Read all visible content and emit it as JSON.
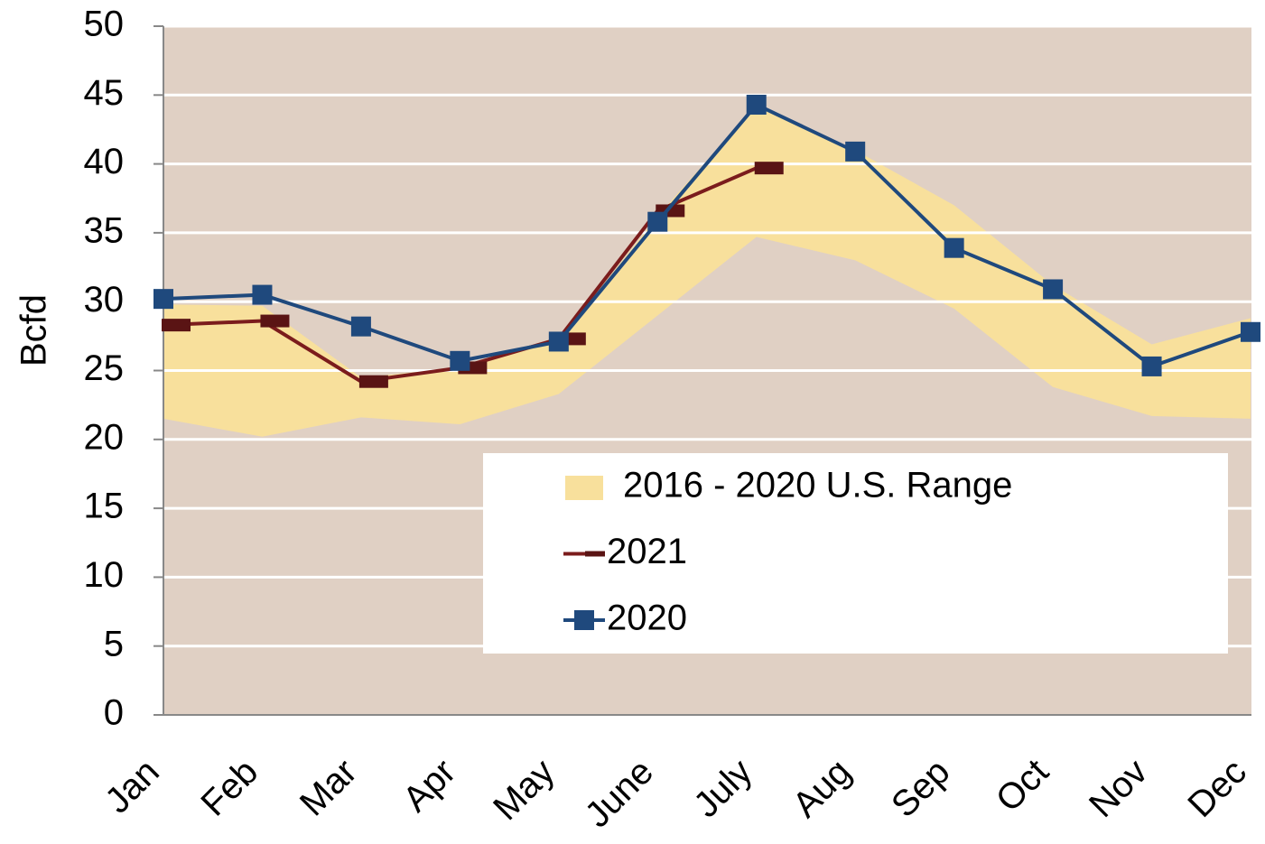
{
  "chart_data": {
    "type": "line",
    "y_label": "Bcfd",
    "categories": [
      "Jan",
      "Feb",
      "Mar",
      "Apr",
      "May",
      "June",
      "July",
      "Aug",
      "Sep",
      "Oct",
      "Nov",
      "Dec"
    ],
    "series": [
      {
        "name": "2016 - 2020 U.S. Range",
        "color": "#f8e09c",
        "low": [
          21.5,
          20.2,
          21.6,
          21.1,
          23.3,
          29,
          34.7,
          33,
          29.5,
          23.8,
          21.7,
          21.5
        ],
        "high": [
          29.8,
          29.7,
          24.5,
          25.2,
          27.2,
          36.2,
          44.3,
          41,
          37,
          31.2,
          26.9,
          28.8
        ]
      },
      {
        "name": "2021",
        "color": "#7b1c1c",
        "marker": "dash",
        "values": [
          28.3,
          28.6,
          24.2,
          25.2,
          27.3,
          36.6,
          39.7,
          null,
          null,
          null,
          null,
          null
        ]
      },
      {
        "name": "2020",
        "color": "#1f497d",
        "marker": "square",
        "values": [
          30.2,
          30.5,
          28.2,
          25.7,
          27.1,
          35.8,
          44.3,
          40.9,
          33.9,
          30.9,
          25.3,
          27.8
        ]
      }
    ],
    "ylim": [
      0,
      50
    ],
    "yticks": [
      0,
      5,
      10,
      15,
      20,
      25,
      30,
      35,
      40,
      45,
      50
    ],
    "grid": true,
    "plot_background": "#e0d0c4",
    "legend": "lower right"
  }
}
